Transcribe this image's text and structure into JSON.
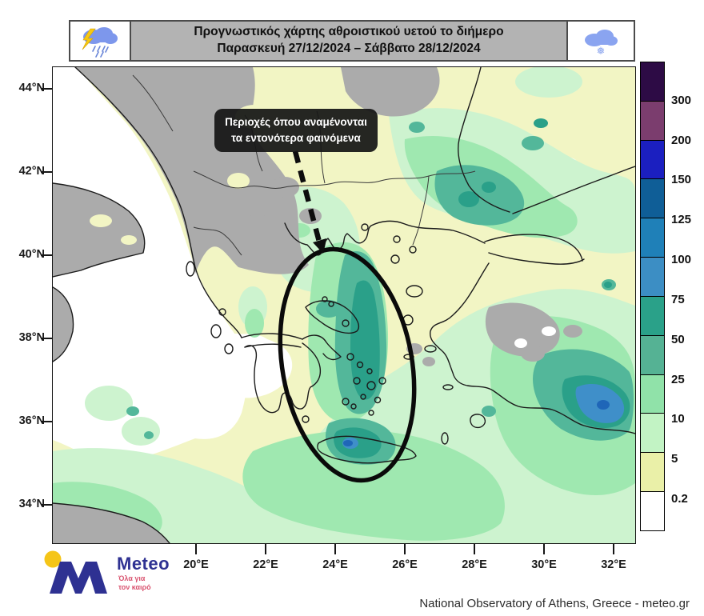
{
  "header": {
    "title_line1": "Προγνωστικός χάρτης αθροιστικού υετού το διήμερο",
    "title_line2": "Παρασκευή 27/12/2024 – Σάββατο 28/12/2024",
    "left_icon": "storm-cloud-lightning-rain-icon",
    "right_icon": "snow-cloud-icon",
    "bar_color": "#b3b3b3"
  },
  "annotation": {
    "line1": "Περιοχές όπου αναμένονται",
    "line2": "τα εντονότερα φαινόμενα"
  },
  "axes": {
    "latitude_labels": [
      "44°N",
      "42°N",
      "40°N",
      "38°N",
      "36°N",
      "34°N"
    ],
    "longitude_labels": [
      "20°E",
      "22°E",
      "24°E",
      "26°E",
      "28°E",
      "30°E",
      "32°E"
    ]
  },
  "colorbar": {
    "labels_top_to_bottom": [
      "300",
      "200",
      "150",
      "125",
      "100",
      "75",
      "50",
      "25",
      "10",
      "5",
      "0.2"
    ],
    "colors_top_to_bottom": [
      "#2d0b45",
      "#7b3d6e",
      "#1b1fc0",
      "#0f5e97",
      "#1f80b8",
      "#3c8ec4",
      "#2aa189",
      "#55b294",
      "#90e2a9",
      "#c2f3c4",
      "#eaf0a8",
      "#ffffff"
    ]
  },
  "logo": {
    "brand": "Meteo",
    "tagline_line1": "Όλα για",
    "tagline_line2": "τον καιρό",
    "brand_color": "#2e3192",
    "accent_color": "#f5c518",
    "tagline_color": "#d9536f"
  },
  "attribution": "National Observatory of Athens, Greece - meteo.gr",
  "chart_data": {
    "type": "heatmap",
    "title": "Προγνωστικός χάρτης αθροιστικού υετού το διήμερο",
    "subtitle": "Παρασκευή 27/12/2024 – Σάββατο 28/12/2024",
    "variable": "accumulated precipitation, two-day total (mm)",
    "region": "Greece and the Aegean",
    "lon_ticks": [
      "20°E",
      "22°E",
      "24°E",
      "26°E",
      "28°E",
      "30°E",
      "32°E"
    ],
    "lat_ticks": [
      "44°N",
      "42°N",
      "40°N",
      "38°N",
      "36°N",
      "34°N"
    ],
    "scale_breaks_mm": [
      0.2,
      5,
      10,
      25,
      50,
      75,
      100,
      125,
      150,
      200,
      300
    ],
    "scale_colors_low_to_high": [
      "#ffffff",
      "#eaf0a8",
      "#c2f3c4",
      "#90e2a9",
      "#55b294",
      "#2aa189",
      "#3c8ec4",
      "#1f80b8",
      "#0f5e97",
      "#1b1fc0",
      "#7b3d6e",
      "#2d0b45"
    ],
    "highlight_annotation": "Ellipse over central Aegean down to Crete marking areas where the most intense phenomena are expected",
    "notable_maxima": [
      "central Aegean band 25–75 mm",
      "western Crete 75–125 mm",
      "SW Turkey coast 75–125 mm",
      "Marmara region 50–75 mm"
    ]
  }
}
